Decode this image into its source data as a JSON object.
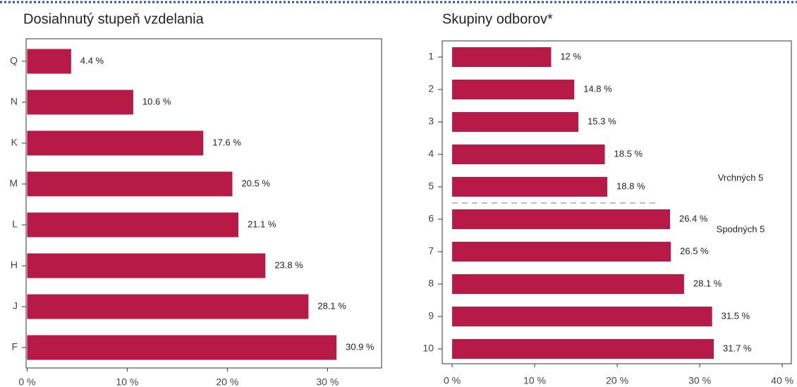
{
  "chart_data": [
    {
      "type": "bar",
      "orientation": "horizontal",
      "title": "Dosiahnutý stupeň vzdelania",
      "categories": [
        "Q",
        "N",
        "K",
        "M",
        "L",
        "H",
        "J",
        "F"
      ],
      "values": [
        4.4,
        10.6,
        17.6,
        20.5,
        21.1,
        23.8,
        28.1,
        30.9
      ],
      "value_labels": [
        "4.4 %",
        "10.6 %",
        "17.6 %",
        "20.5 %",
        "21.1 %",
        "23.8 %",
        "28.1 %",
        "30.9 %"
      ],
      "color": "#b71a47",
      "xlim": [
        -0.1,
        35.4
      ],
      "xticks": [
        {
          "value": 0,
          "label": "0 %"
        },
        {
          "value": 10,
          "label": "10 %"
        },
        {
          "value": 20,
          "label": "20 %"
        },
        {
          "value": 30,
          "label": "30 %"
        }
      ]
    },
    {
      "type": "bar",
      "orientation": "horizontal",
      "title": "Skupiny odborov*",
      "categories": [
        "1",
        "2",
        "3",
        "4",
        "5",
        "6",
        "7",
        "8",
        "9",
        "10"
      ],
      "values": [
        12,
        14.8,
        15.3,
        18.5,
        18.8,
        26.4,
        26.5,
        28.1,
        31.5,
        31.7
      ],
      "value_labels": [
        "12 %",
        "14.8 %",
        "15.3 %",
        "18.5 %",
        "18.8 %",
        "26.4 %",
        "26.5 %",
        "28.1 %",
        "31.5 %",
        "31.7 %"
      ],
      "color": "#b71a47",
      "xlim": [
        -1.2,
        41.1
      ],
      "xticks": [
        {
          "value": 0,
          "label": "0 %"
        },
        {
          "value": 10,
          "label": "10 %"
        },
        {
          "value": 20,
          "label": "20 %"
        },
        {
          "value": 30,
          "label": "30 %"
        },
        {
          "value": 40,
          "label": "40 %"
        }
      ],
      "annotations": [
        "Vrchných 5",
        "Spodných 5"
      ]
    }
  ]
}
